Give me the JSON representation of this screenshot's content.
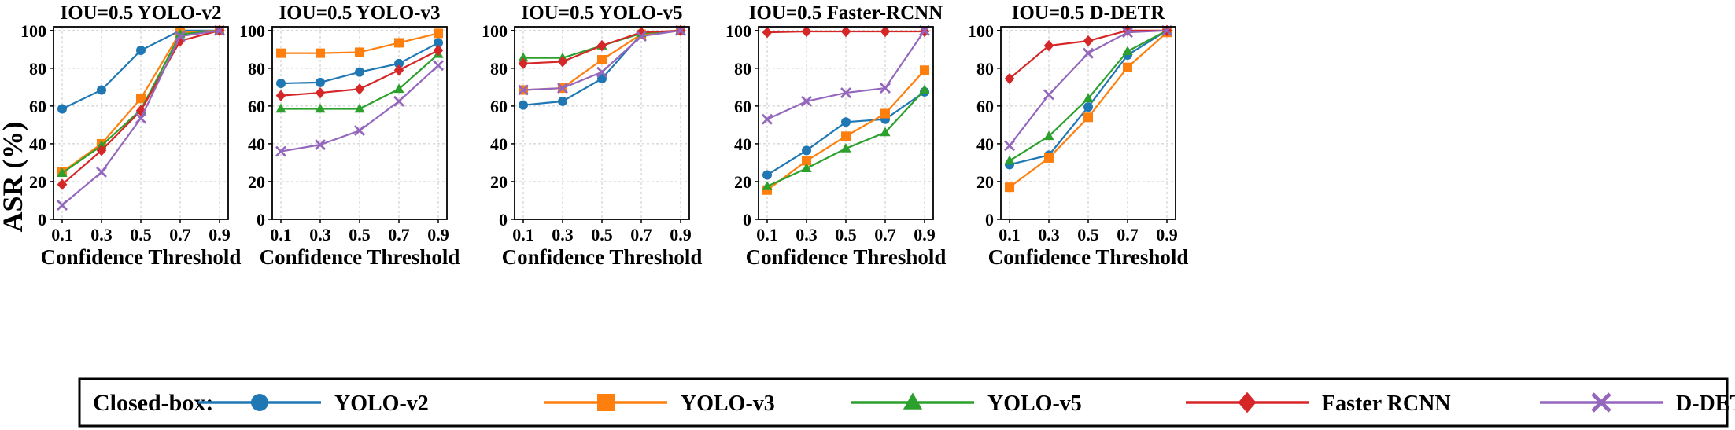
{
  "figure": {
    "y_axis_label": "ASR  (%)",
    "legend_title": "Closed-box:"
  },
  "chart_data": [
    {
      "type": "line",
      "title": "IOU=0.5  YOLO-v2",
      "xlabel": "Confidence Threshold",
      "ylabel": "ASR  (%)",
      "x": [
        0.1,
        0.3,
        0.5,
        0.7,
        0.9
      ],
      "xticks": [
        "0.1",
        "0.3",
        "0.5",
        "0.7",
        "0.9"
      ],
      "yticks": [
        "0",
        "20",
        "40",
        "60",
        "80",
        "100"
      ],
      "ylim": [
        0,
        102
      ],
      "grid": true,
      "series": [
        {
          "name": "YOLO-v2",
          "values": [
            58.5,
            68.5,
            89.5,
            100,
            100
          ]
        },
        {
          "name": "YOLO-v3",
          "values": [
            25,
            40,
            64,
            99,
            100
          ]
        },
        {
          "name": "YOLO-v5",
          "values": [
            24.5,
            39,
            58,
            98,
            100
          ]
        },
        {
          "name": "Faster RCNN",
          "values": [
            18.5,
            36.5,
            57.5,
            94.5,
            100
          ]
        },
        {
          "name": "D-DETR",
          "values": [
            7.5,
            25,
            53.5,
            97,
            100
          ]
        }
      ]
    },
    {
      "type": "line",
      "title": "IOU=0.5  YOLO-v3",
      "xlabel": "Confidence Threshold",
      "ylabel": "",
      "x": [
        0.1,
        0.3,
        0.5,
        0.7,
        0.9
      ],
      "xticks": [
        "0.1",
        "0.3",
        "0.5",
        "0.7",
        "0.9"
      ],
      "yticks": [
        "0",
        "20",
        "40",
        "60",
        "80",
        "100"
      ],
      "ylim": [
        0,
        102
      ],
      "grid": true,
      "series": [
        {
          "name": "YOLO-v2",
          "values": [
            72,
            72.5,
            78,
            82.5,
            93.5
          ]
        },
        {
          "name": "YOLO-v3",
          "values": [
            88,
            88,
            88.5,
            93.5,
            98.5
          ]
        },
        {
          "name": "YOLO-v5",
          "values": [
            58.5,
            58.5,
            58.5,
            69,
            87.5
          ]
        },
        {
          "name": "Faster RCNN",
          "values": [
            65.5,
            67,
            69,
            79,
            89.5
          ]
        },
        {
          "name": "D-DETR",
          "values": [
            36,
            39.5,
            47,
            62.5,
            81.5
          ]
        }
      ]
    },
    {
      "type": "line",
      "title": "IOU=0.5  YOLO-v5",
      "xlabel": "Confidence Threshold",
      "ylabel": "",
      "x": [
        0.1,
        0.3,
        0.5,
        0.7,
        0.9
      ],
      "xticks": [
        "0.1",
        "0.3",
        "0.5",
        "0.7",
        "0.9"
      ],
      "yticks": [
        "0",
        "20",
        "40",
        "60",
        "80",
        "100"
      ],
      "ylim": [
        0,
        102
      ],
      "grid": true,
      "series": [
        {
          "name": "YOLO-v2",
          "values": [
            60.5,
            62.5,
            74.5,
            98,
            100
          ]
        },
        {
          "name": "YOLO-v3",
          "values": [
            68.5,
            69.5,
            84.5,
            98,
            100
          ]
        },
        {
          "name": "YOLO-v5",
          "values": [
            85.5,
            85.5,
            92,
            98.5,
            100
          ]
        },
        {
          "name": "Faster RCNN",
          "values": [
            82.5,
            83.5,
            92,
            99,
            100
          ]
        },
        {
          "name": "D-DETR",
          "values": [
            68.5,
            69.5,
            78,
            97,
            100
          ]
        }
      ]
    },
    {
      "type": "line",
      "title": "IOU=0.5  Faster-RCNN",
      "xlabel": "Confidence Threshold",
      "ylabel": "",
      "x": [
        0.1,
        0.3,
        0.5,
        0.7,
        0.9
      ],
      "xticks": [
        "0.1",
        "0.3",
        "0.5",
        "0.7",
        "0.9"
      ],
      "yticks": [
        "0",
        "20",
        "40",
        "60",
        "80",
        "100"
      ],
      "ylim": [
        0,
        102
      ],
      "grid": true,
      "series": [
        {
          "name": "YOLO-v2",
          "values": [
            23.5,
            36.5,
            51.5,
            53,
            67.5
          ]
        },
        {
          "name": "YOLO-v3",
          "values": [
            15.5,
            31,
            44,
            56,
            79
          ]
        },
        {
          "name": "YOLO-v5",
          "values": [
            17.5,
            27,
            37.5,
            46,
            68.5
          ]
        },
        {
          "name": "Faster RCNN",
          "values": [
            99,
            99.5,
            99.5,
            99.5,
            99.5
          ]
        },
        {
          "name": "D-DETR",
          "values": [
            53,
            62.5,
            67,
            69.5,
            100
          ]
        }
      ]
    },
    {
      "type": "line",
      "title": "IOU=0.5  D-DETR",
      "xlabel": "Confidence Threshold",
      "ylabel": "",
      "x": [
        0.1,
        0.3,
        0.5,
        0.7,
        0.9
      ],
      "xticks": [
        "0.1",
        "0.3",
        "0.5",
        "0.7",
        "0.9"
      ],
      "yticks": [
        "0",
        "20",
        "40",
        "60",
        "80",
        "100"
      ],
      "ylim": [
        0,
        102
      ],
      "grid": true,
      "series": [
        {
          "name": "YOLO-v2",
          "values": [
            29,
            34,
            59.5,
            87,
            100
          ]
        },
        {
          "name": "YOLO-v3",
          "values": [
            17,
            32.5,
            54,
            80.5,
            99
          ]
        },
        {
          "name": "YOLO-v5",
          "values": [
            31,
            44,
            64,
            89,
            100
          ]
        },
        {
          "name": "Faster RCNN",
          "values": [
            74.5,
            92,
            94.5,
            100,
            100
          ]
        },
        {
          "name": "D-DETR",
          "values": [
            39,
            66,
            88,
            99,
            100
          ]
        }
      ]
    }
  ],
  "legend": [
    {
      "name": "YOLO-v2",
      "color": "#1f77b4",
      "marker": "circle"
    },
    {
      "name": "YOLO-v3",
      "color": "#ff7f0e",
      "marker": "square"
    },
    {
      "name": "YOLO-v5",
      "color": "#2ca02c",
      "marker": "triangle"
    },
    {
      "name": "Faster RCNN",
      "color": "#d62728",
      "marker": "diamond"
    },
    {
      "name": "D-DETR",
      "color": "#9467bd",
      "marker": "x"
    }
  ]
}
